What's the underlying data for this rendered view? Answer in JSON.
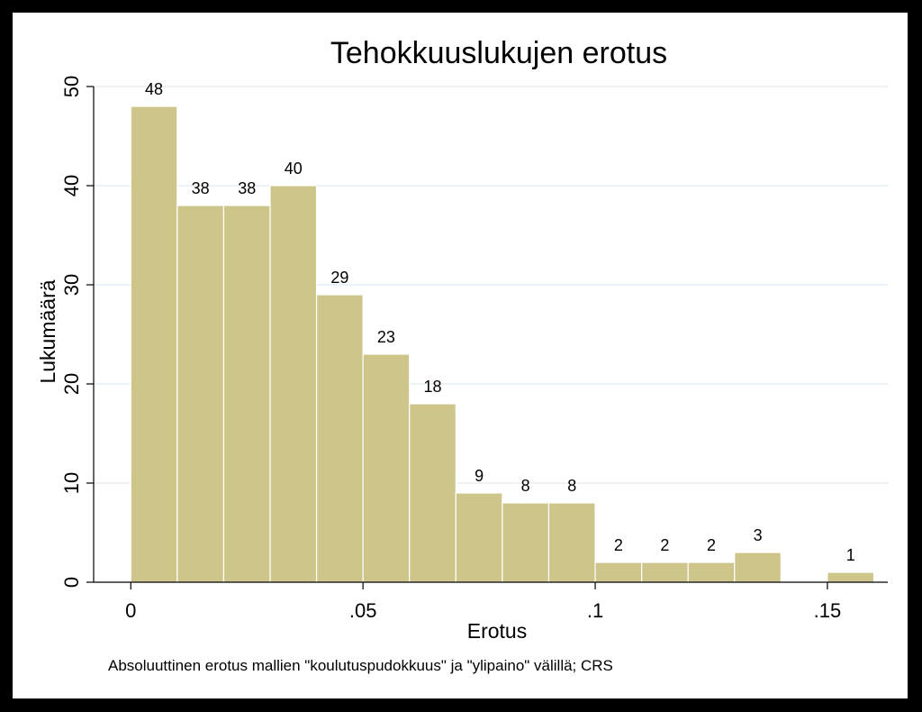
{
  "chart_data": {
    "type": "bar",
    "title": "Tehokkuuslukujen erotus",
    "xlabel": "Erotus",
    "ylabel": "Lukumäärä",
    "note": "Absoluuttinen erotus mallien \"koulutuspudokkuus\" ja \"ylipaino\" välillä; CRS",
    "bins": [
      {
        "x0": 0.0,
        "x1": 0.01,
        "value": 48
      },
      {
        "x0": 0.01,
        "x1": 0.02,
        "value": 38
      },
      {
        "x0": 0.02,
        "x1": 0.03,
        "value": 38
      },
      {
        "x0": 0.03,
        "x1": 0.04,
        "value": 40
      },
      {
        "x0": 0.04,
        "x1": 0.05,
        "value": 29
      },
      {
        "x0": 0.05,
        "x1": 0.06,
        "value": 23
      },
      {
        "x0": 0.06,
        "x1": 0.07,
        "value": 18
      },
      {
        "x0": 0.07,
        "x1": 0.08,
        "value": 9
      },
      {
        "x0": 0.08,
        "x1": 0.09,
        "value": 8
      },
      {
        "x0": 0.09,
        "x1": 0.1,
        "value": 8
      },
      {
        "x0": 0.1,
        "x1": 0.11,
        "value": 2
      },
      {
        "x0": 0.11,
        "x1": 0.12,
        "value": 2
      },
      {
        "x0": 0.12,
        "x1": 0.13,
        "value": 2
      },
      {
        "x0": 0.13,
        "x1": 0.14,
        "value": 3
      },
      {
        "x0": 0.15,
        "x1": 0.16,
        "value": 1
      }
    ],
    "xlim": [
      -0.008,
      0.163
    ],
    "ylim": [
      0,
      50
    ],
    "xticks": [
      {
        "value": 0,
        "label": "0"
      },
      {
        "value": 0.05,
        "label": ".05"
      },
      {
        "value": 0.1,
        "label": ".1"
      },
      {
        "value": 0.15,
        "label": ".15"
      }
    ],
    "yticks": [
      {
        "value": 0,
        "label": "0"
      },
      {
        "value": 10,
        "label": "10"
      },
      {
        "value": 20,
        "label": "20"
      },
      {
        "value": 30,
        "label": "30"
      },
      {
        "value": 40,
        "label": "40"
      },
      {
        "value": 50,
        "label": "50"
      }
    ],
    "grid": true,
    "colors": {
      "bar_fill": "#cdc589",
      "bar_stroke": "#ffffff",
      "title": "#1a2a5a",
      "grid": "#e6edf2",
      "axis": "#000000"
    }
  }
}
